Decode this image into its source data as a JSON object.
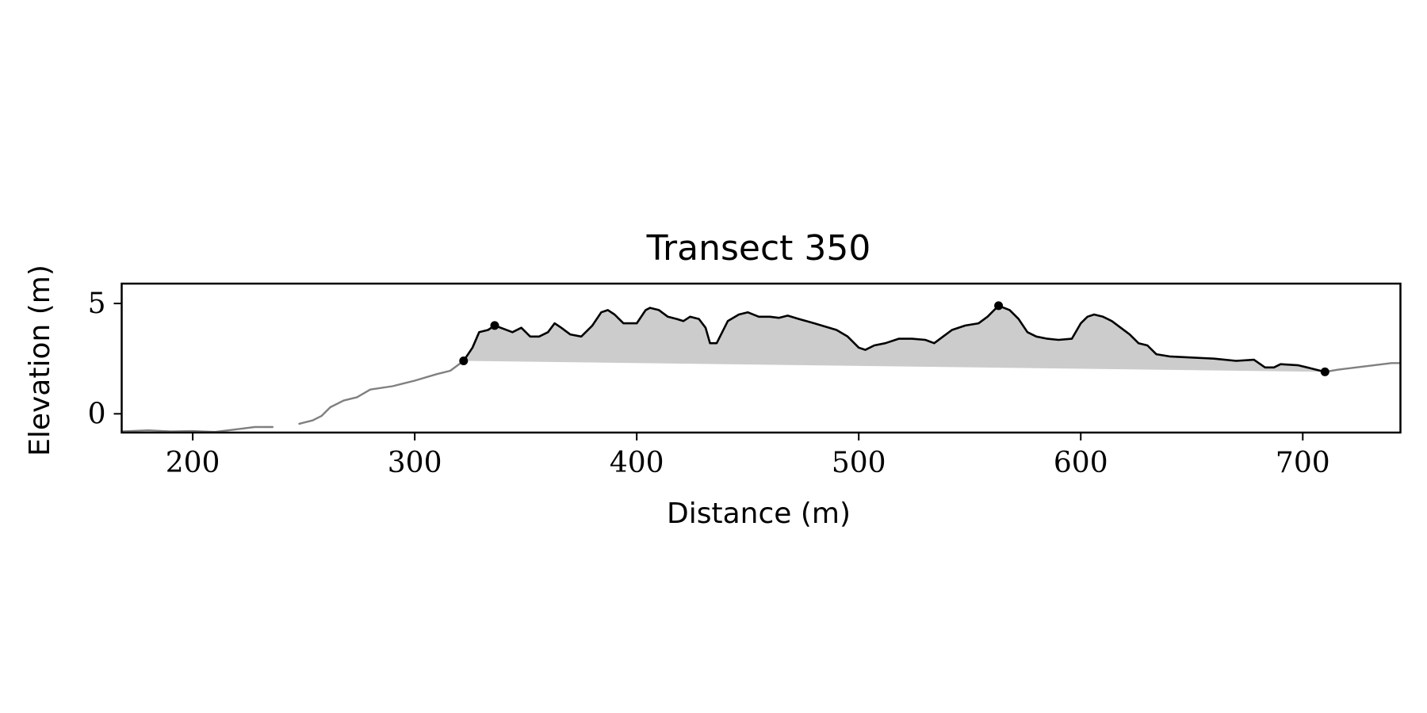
{
  "chart_data": {
    "type": "line",
    "title": "Transect 350",
    "xlabel": "Distance (m)",
    "ylabel": "Elevation (m)",
    "xlim": [
      168,
      744
    ],
    "ylim": [
      -0.85,
      5.9
    ],
    "xticks": [
      200,
      300,
      400,
      500,
      600,
      700
    ],
    "yticks": [
      0,
      5
    ],
    "grid": false,
    "legend": "none",
    "colors": {
      "profile_outside": "#808080",
      "profile_dune": "#000000",
      "fill": "#cccccc",
      "points": "#000000"
    },
    "series": [
      {
        "role": "profile-seaward-segment",
        "points": [
          [
            168,
            -0.8
          ],
          [
            180,
            -0.75
          ],
          [
            190,
            -0.8
          ],
          [
            200,
            -0.78
          ],
          [
            210,
            -0.82
          ],
          [
            220,
            -0.7
          ],
          [
            228,
            -0.6
          ],
          [
            236,
            -0.6
          ]
        ]
      },
      {
        "role": "profile-landward-segment",
        "points": [
          [
            248,
            -0.45
          ],
          [
            254,
            -0.3
          ],
          [
            258,
            -0.1
          ],
          [
            262,
            0.3
          ],
          [
            268,
            0.6
          ],
          [
            274,
            0.75
          ],
          [
            280,
            1.1
          ],
          [
            290,
            1.25
          ],
          [
            300,
            1.5
          ],
          [
            310,
            1.8
          ],
          [
            316,
            1.95
          ],
          [
            322,
            2.4
          ]
        ]
      },
      {
        "role": "dune-profile",
        "points": [
          [
            322,
            2.4
          ],
          [
            326,
            3.0
          ],
          [
            329,
            3.7
          ],
          [
            333,
            3.8
          ],
          [
            336,
            4.0
          ],
          [
            344,
            3.7
          ],
          [
            348,
            3.9
          ],
          [
            352,
            3.5
          ],
          [
            356,
            3.5
          ],
          [
            360,
            3.7
          ],
          [
            363,
            4.1
          ],
          [
            366,
            3.9
          ],
          [
            370,
            3.6
          ],
          [
            375,
            3.5
          ],
          [
            380,
            4.0
          ],
          [
            384,
            4.6
          ],
          [
            387,
            4.7
          ],
          [
            390,
            4.5
          ],
          [
            394,
            4.1
          ],
          [
            400,
            4.1
          ],
          [
            404,
            4.7
          ],
          [
            406,
            4.8
          ],
          [
            410,
            4.7
          ],
          [
            414,
            4.4
          ],
          [
            418,
            4.3
          ],
          [
            421,
            4.2
          ],
          [
            424,
            4.4
          ],
          [
            428,
            4.3
          ],
          [
            431,
            3.9
          ],
          [
            433,
            3.2
          ],
          [
            436,
            3.2
          ],
          [
            441,
            4.2
          ],
          [
            446,
            4.5
          ],
          [
            450,
            4.6
          ],
          [
            455,
            4.4
          ],
          [
            460,
            4.4
          ],
          [
            464,
            4.35
          ],
          [
            468,
            4.45
          ],
          [
            473,
            4.3
          ],
          [
            480,
            4.1
          ],
          [
            490,
            3.8
          ],
          [
            495,
            3.5
          ],
          [
            500,
            3.0
          ],
          [
            503,
            2.9
          ],
          [
            507,
            3.1
          ],
          [
            512,
            3.2
          ],
          [
            518,
            3.4
          ],
          [
            524,
            3.4
          ],
          [
            530,
            3.35
          ],
          [
            534,
            3.2
          ],
          [
            538,
            3.5
          ],
          [
            542,
            3.8
          ],
          [
            548,
            4.0
          ],
          [
            554,
            4.1
          ],
          [
            558,
            4.4
          ],
          [
            562,
            4.8
          ],
          [
            563,
            4.9
          ],
          [
            568,
            4.7
          ],
          [
            572,
            4.3
          ],
          [
            576,
            3.7
          ],
          [
            580,
            3.5
          ],
          [
            585,
            3.4
          ],
          [
            590,
            3.35
          ],
          [
            596,
            3.4
          ],
          [
            600,
            4.1
          ],
          [
            603,
            4.4
          ],
          [
            606,
            4.5
          ],
          [
            610,
            4.4
          ],
          [
            614,
            4.2
          ],
          [
            618,
            3.9
          ],
          [
            622,
            3.6
          ],
          [
            626,
            3.2
          ],
          [
            630,
            3.1
          ],
          [
            634,
            2.7
          ],
          [
            640,
            2.6
          ],
          [
            650,
            2.55
          ],
          [
            660,
            2.5
          ],
          [
            670,
            2.4
          ],
          [
            678,
            2.45
          ],
          [
            683,
            2.1
          ],
          [
            687,
            2.1
          ],
          [
            690,
            2.25
          ],
          [
            698,
            2.2
          ],
          [
            702,
            2.1
          ],
          [
            706,
            2.0
          ],
          [
            710,
            1.9
          ]
        ]
      },
      {
        "role": "profile-beyond-segment",
        "points": [
          [
            710,
            1.9
          ],
          [
            716,
            2.0
          ],
          [
            724,
            2.1
          ],
          [
            732,
            2.2
          ],
          [
            740,
            2.3
          ],
          [
            744,
            2.3
          ]
        ]
      }
    ],
    "fill_between": {
      "upper": "dune-profile",
      "lower_line": [
        [
          322,
          2.4
        ],
        [
          710,
          1.9
        ]
      ]
    },
    "markers": [
      {
        "x": 322,
        "y": 2.4
      },
      {
        "x": 336,
        "y": 4.0
      },
      {
        "x": 563,
        "y": 4.9
      },
      {
        "x": 710,
        "y": 1.9
      }
    ]
  }
}
